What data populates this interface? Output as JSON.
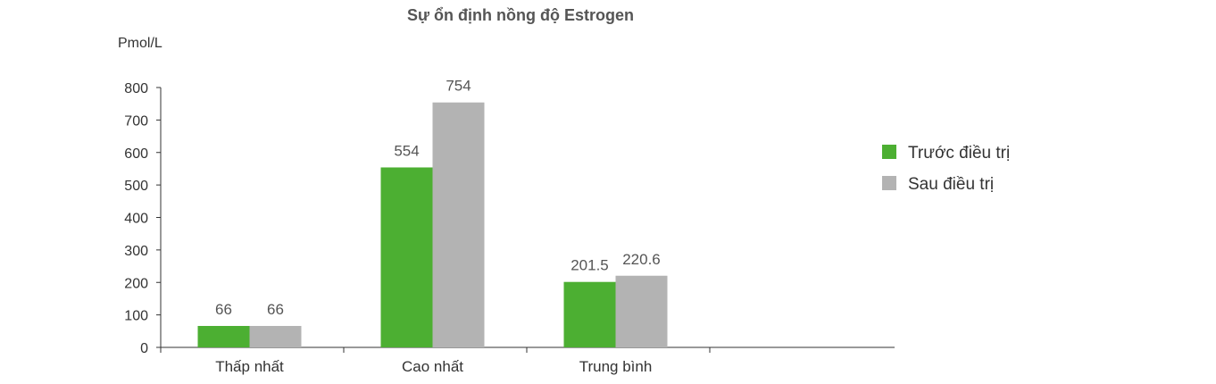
{
  "chart_data": {
    "type": "bar",
    "title": "Sự ổn định nồng độ Estrogen",
    "ylabel": "Pmol/L",
    "xlabel": "",
    "categories": [
      "Thấp nhất",
      "Cao nhất",
      "Trung bình"
    ],
    "series": [
      {
        "name": "Trước điều trị",
        "values": [
          66,
          554,
          201.5
        ],
        "labels": [
          "66",
          "554",
          "201.5"
        ],
        "color": "#4caf32"
      },
      {
        "name": "Sau điều trị",
        "values": [
          66,
          754,
          220.6
        ],
        "labels": [
          "66",
          "754",
          "220.6"
        ],
        "color": "#b3b3b3"
      }
    ],
    "ylim": [
      0,
      800
    ],
    "yticks": [
      "0",
      "100",
      "200",
      "300",
      "400",
      "500",
      "600",
      "700",
      "800"
    ],
    "grid": false,
    "legend": "right"
  }
}
